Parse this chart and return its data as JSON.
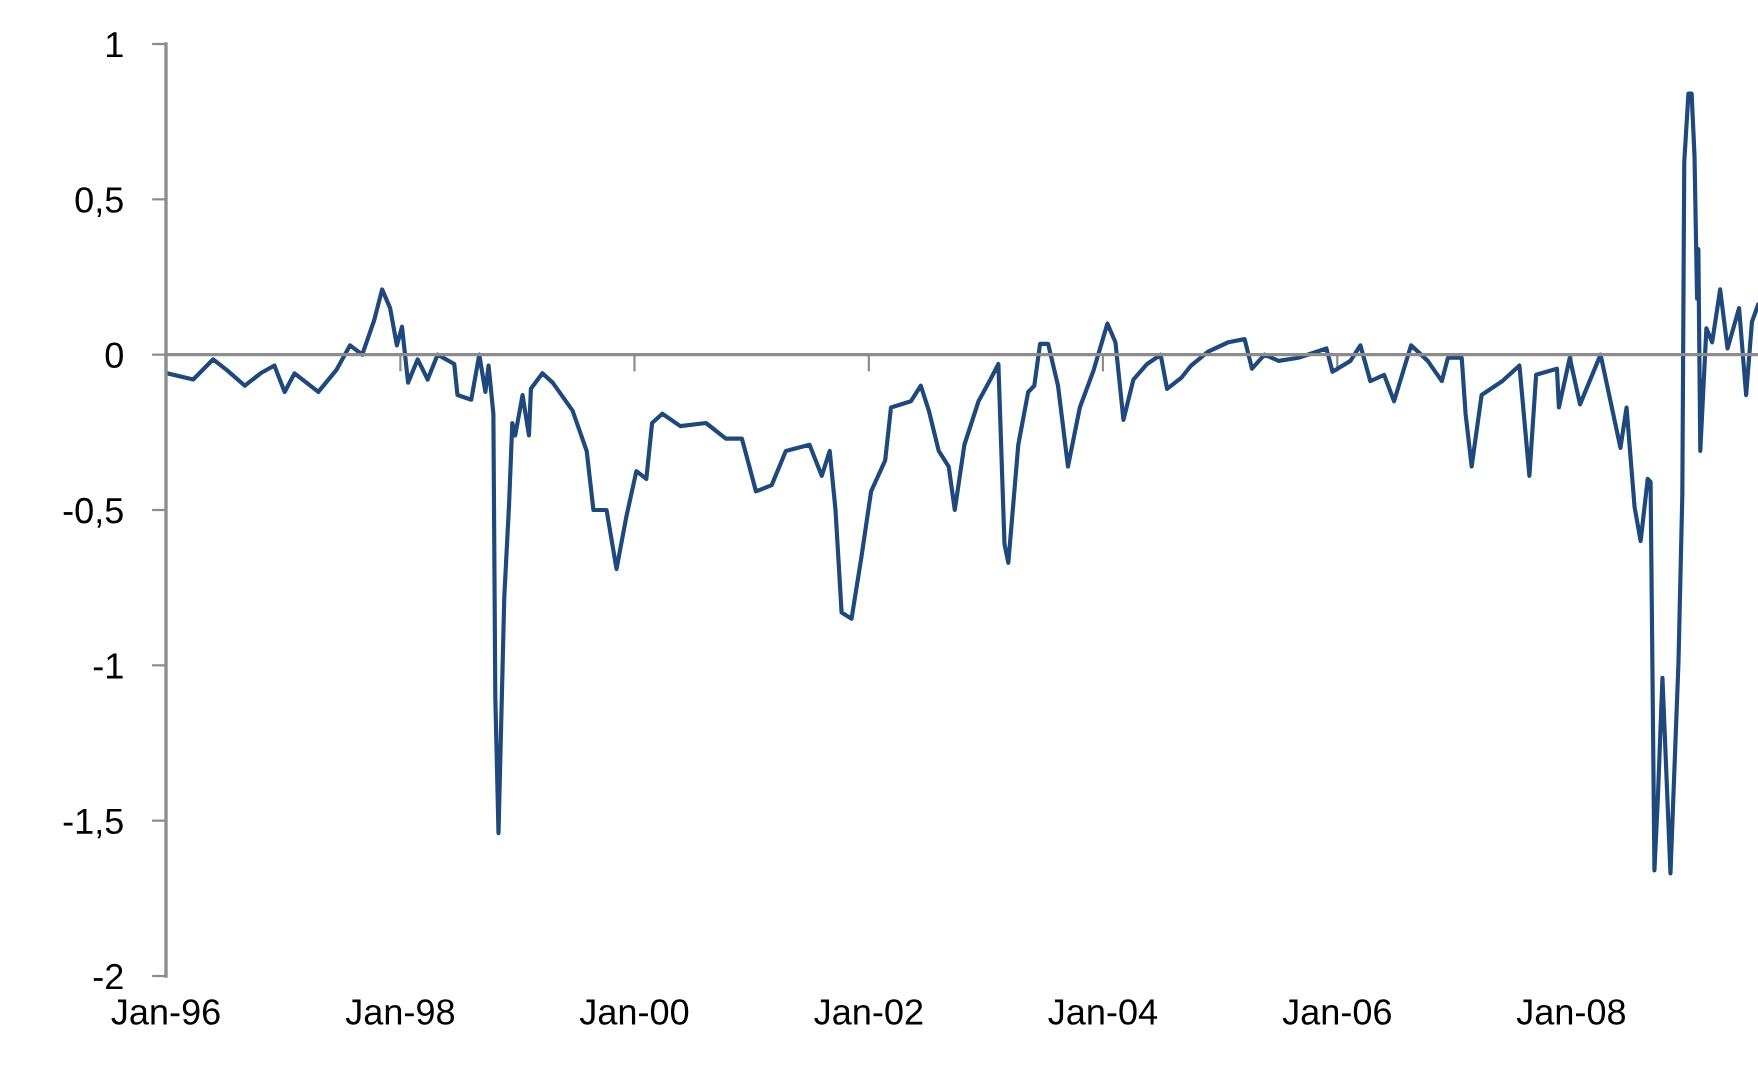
{
  "chart_data": {
    "type": "line",
    "xlim": [
      "1996-01-01",
      "2009-08-05"
    ],
    "ylim": [
      -2,
      1
    ],
    "xticks": [
      {
        "value": "1996-01-01",
        "label": "Jan-96"
      },
      {
        "value": "1998-01-01",
        "label": "Jan-98"
      },
      {
        "value": "2000-01-01",
        "label": "Jan-00"
      },
      {
        "value": "2002-01-01",
        "label": "Jan-02"
      },
      {
        "value": "2004-01-01",
        "label": "Jan-04"
      },
      {
        "value": "2006-01-01",
        "label": "Jan-06"
      },
      {
        "value": "2008-01-01",
        "label": "Jan-08"
      }
    ],
    "yticks": [
      1,
      {
        "value": 0.5,
        "label": "0,5"
      },
      0,
      {
        "value": -0.5,
        "label": "-0,5"
      },
      -1,
      {
        "value": -1.5,
        "label": "-1,5"
      },
      -2
    ],
    "marker": "none",
    "line_style": "solid",
    "series": [
      {
        "color": "#1f497d",
        "x": [
          "1996-01-05",
          "1996-03-26",
          "1996-05-27",
          "1996-07-09",
          "1996-09-03",
          "1996-10-22",
          "1996-12-04",
          "1997-01-05",
          "1997-02-05",
          "1997-04-20",
          "1997-06-15",
          "1997-07-28",
          "1997-09-04",
          "1997-10-11",
          "1997-11-05",
          "1997-11-30",
          "1997-12-21",
          "1998-01-06",
          "1998-01-25",
          "1998-02-24",
          "1998-03-27",
          "1998-04-27",
          "1998-06-18",
          "1998-06-28",
          "1998-08-10",
          "1998-09-04",
          "1998-09-23",
          "1998-10-03",
          "1998-10-18",
          "1998-10-24",
          "1998-11-03",
          "1998-11-21",
          "1998-12-06",
          "1998-12-16",
          "1998-12-25",
          "1999-01-17",
          "1999-02-06",
          "1999-02-12",
          "1999-03-20",
          "1999-04-21",
          "1999-06-22",
          "1999-08-05",
          "1999-08-26",
          "1999-10-06",
          "1999-11-06",
          "1999-12-07",
          "2000-01-07",
          "2000-02-07",
          "2000-02-25",
          "2000-03-28",
          "2000-05-23",
          "2000-08-11",
          "2000-10-12",
          "2000-12-01",
          "2001-01-14",
          "2001-03-04",
          "2001-04-17",
          "2001-06-30",
          "2001-08-07",
          "2001-09-01",
          "2001-09-19",
          "2001-10-08",
          "2001-11-08",
          "2001-12-09",
          "2002-01-08",
          "2002-02-21",
          "2002-03-11",
          "2002-05-12",
          "2002-06-12",
          "2002-07-07",
          "2002-08-07",
          "2002-09-07",
          "2002-09-26",
          "2002-10-26",
          "2002-12-09",
          "2003-01-15",
          "2003-02-09",
          "2003-02-28",
          "2003-03-12",
          "2003-04-12",
          "2003-05-13",
          "2003-06-01",
          "2003-06-19",
          "2003-07-14",
          "2003-08-14",
          "2003-09-14",
          "2003-10-21",
          "2003-12-03",
          "2004-01-15",
          "2004-02-09",
          "2004-03-05",
          "2004-04-05",
          "2004-05-18",
          "2004-06-29",
          "2004-07-19",
          "2004-09-01",
          "2004-10-02",
          "2004-11-24",
          "2005-01-26",
          "2005-03-18",
          "2005-04-10",
          "2005-05-19",
          "2005-07-02",
          "2005-09-02",
          "2005-11-28",
          "2005-12-17",
          "2006-02-11",
          "2006-03-14",
          "2006-04-14",
          "2006-05-27",
          "2006-06-27",
          "2006-08-19",
          "2006-10-10",
          "2006-11-23",
          "2006-12-12",
          "2007-01-24",
          "2007-02-05",
          "2007-02-24",
          "2007-03-27",
          "2007-05-31",
          "2007-07-23",
          "2007-08-23",
          "2007-09-13",
          "2007-11-17",
          "2007-11-23",
          "2007-12-27",
          "2008-01-28",
          "2008-04-01",
          "2008-05-02",
          "2008-06-02",
          "2008-06-21",
          "2008-07-16",
          "2008-08-04",
          "2008-08-26",
          "2008-09-04",
          "2008-09-16",
          "2008-09-27",
          "2008-10-11",
          "2008-11-05",
          "2008-11-30",
          "2008-12-12",
          "2008-12-18",
          "2008-12-31",
          "2009-01-10",
          "2009-01-19",
          "2009-01-27",
          "2009-01-31",
          "2009-02-06",
          "2009-02-25",
          "2009-03-15",
          "2009-04-09",
          "2009-05-02",
          "2009-06-07",
          "2009-06-29",
          "2009-07-17",
          "2009-08-05"
        ],
        "values": [
          -0.06,
          -0.08,
          -0.015,
          -0.05,
          -0.1,
          -0.06,
          -0.035,
          -0.12,
          -0.06,
          -0.12,
          -0.05,
          0.03,
          0.0,
          0.11,
          0.21,
          0.15,
          0.03,
          0.09,
          -0.09,
          -0.015,
          -0.08,
          0.0,
          -0.03,
          -0.13,
          -0.145,
          0.0,
          -0.12,
          -0.035,
          -0.19,
          -1.1,
          -1.54,
          -0.78,
          -0.48,
          -0.22,
          -0.26,
          -0.13,
          -0.26,
          -0.11,
          -0.06,
          -0.09,
          -0.18,
          -0.31,
          -0.5,
          -0.5,
          -0.69,
          -0.52,
          -0.375,
          -0.4,
          -0.22,
          -0.19,
          -0.23,
          -0.22,
          -0.27,
          -0.27,
          -0.44,
          -0.42,
          -0.31,
          -0.29,
          -0.39,
          -0.31,
          -0.5,
          -0.83,
          -0.85,
          -0.65,
          -0.44,
          -0.34,
          -0.17,
          -0.15,
          -0.1,
          -0.18,
          -0.31,
          -0.36,
          -0.5,
          -0.29,
          -0.15,
          -0.08,
          -0.03,
          -0.61,
          -0.67,
          -0.29,
          -0.12,
          -0.1,
          0.035,
          0.035,
          -0.1,
          -0.36,
          -0.17,
          -0.05,
          0.1,
          0.04,
          -0.21,
          -0.08,
          -0.03,
          0.0,
          -0.11,
          -0.075,
          -0.035,
          0.01,
          0.04,
          0.05,
          -0.045,
          0.0,
          -0.02,
          -0.01,
          0.02,
          -0.055,
          -0.02,
          0.03,
          -0.085,
          -0.065,
          -0.15,
          0.03,
          -0.02,
          -0.085,
          -0.01,
          -0.01,
          -0.19,
          -0.36,
          -0.13,
          -0.085,
          -0.035,
          -0.39,
          -0.065,
          -0.045,
          -0.17,
          -0.01,
          -0.16,
          0.0,
          -0.15,
          -0.3,
          -0.17,
          -0.49,
          -0.6,
          -0.4,
          -0.41,
          -1.66,
          -1.42,
          -1.04,
          -1.67,
          -0.99,
          -0.45,
          0.62,
          0.84,
          0.84,
          0.64,
          0.18,
          0.34,
          -0.31,
          0.085,
          0.04,
          0.21,
          0.02,
          0.15,
          -0.13,
          0.105,
          0.16
        ]
      }
    ]
  }
}
